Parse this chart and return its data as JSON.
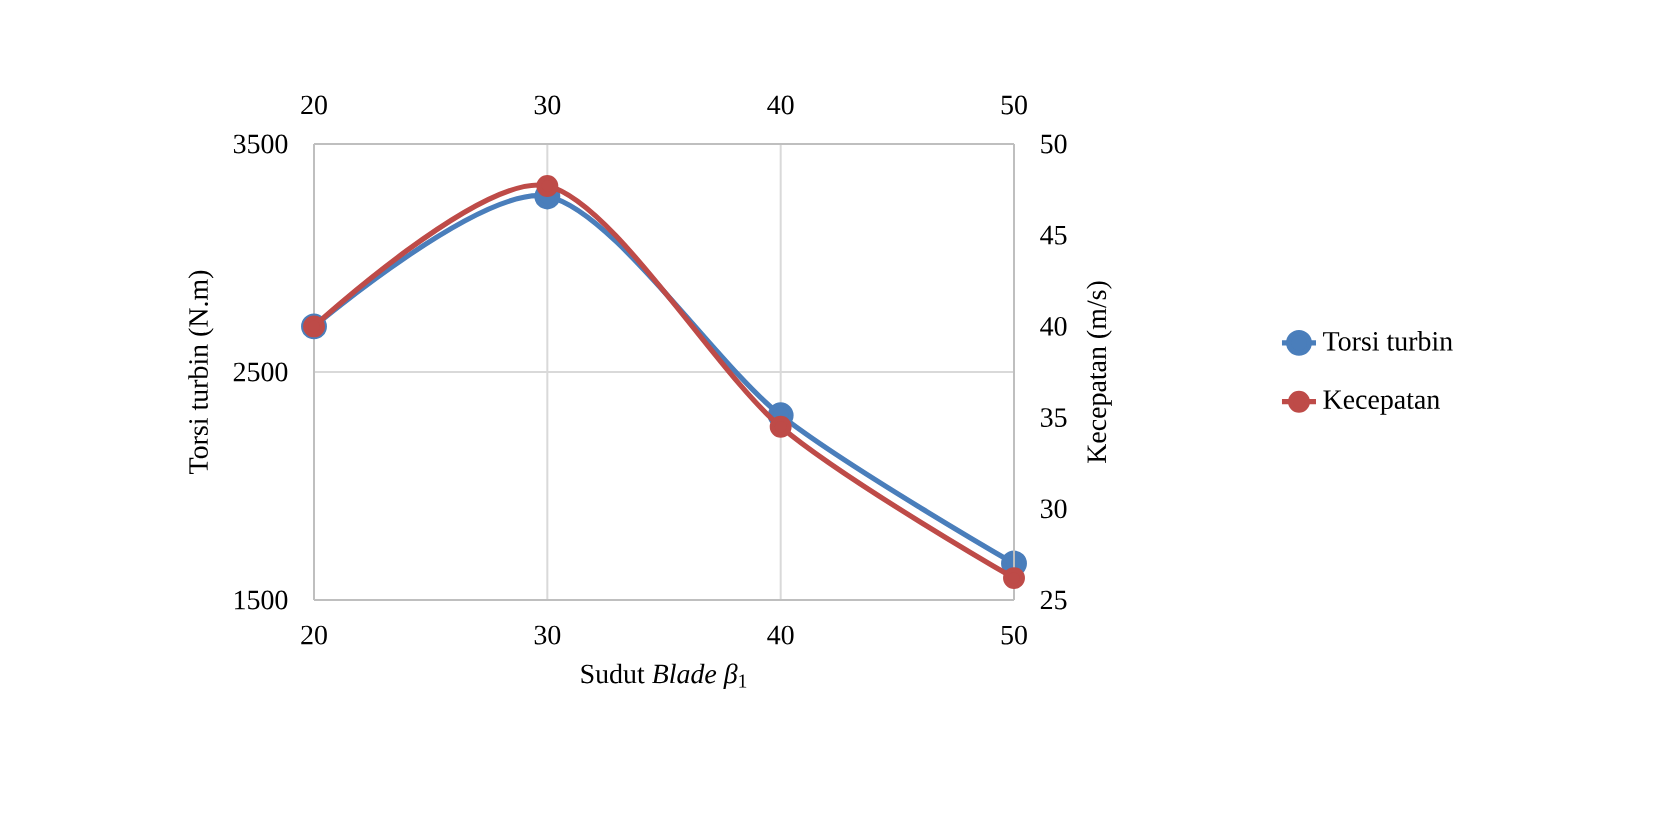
{
  "chart_data": {
    "type": "line",
    "xlabel": "Sudut *Blade β*$_{1}$",
    "ylabel": "Torsi turbin (N.m)",
    "y2label": "Kecepatan (m/s)",
    "x": [
      20,
      30,
      40,
      50
    ],
    "xlim": [
      20,
      50
    ],
    "xticks": [
      20,
      30,
      40,
      50
    ],
    "x2lim": [
      20,
      50
    ],
    "x2ticks": [
      20,
      30,
      40,
      50
    ],
    "ylim": [
      1500,
      3500
    ],
    "yticks": [
      1500,
      2500,
      3500
    ],
    "y2lim": [
      25,
      50
    ],
    "y2ticks": [
      25,
      30,
      35,
      40,
      45,
      50
    ],
    "grid": true,
    "legend": "right",
    "marker": "circle",
    "line_style": "solid",
    "series": [
      {
        "name": "Torsi turbin",
        "color": "#4a7ebb",
        "values": [
          2700,
          3270,
          2310,
          1660
        ]
      },
      {
        "name": "Kecepatan",
        "color": "#be4b48",
        "axis": "y2",
        "values": [
          40.0,
          47.7,
          34.5,
          26.2
        ]
      }
    ]
  }
}
